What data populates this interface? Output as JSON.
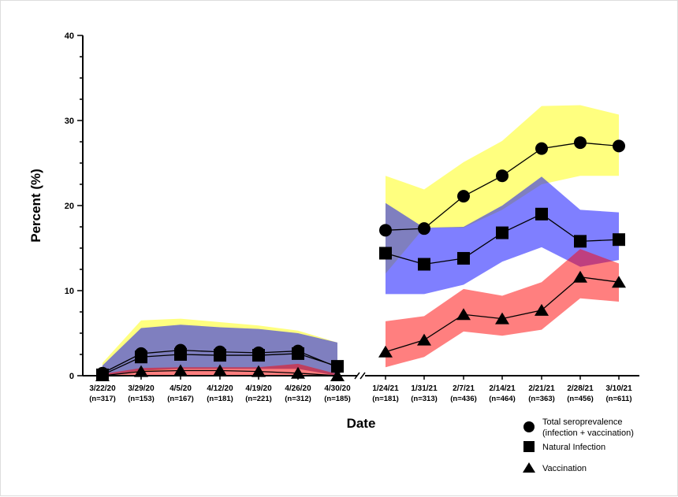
{
  "chart_data": {
    "type": "line",
    "xlabel": "Date",
    "ylabel": "Percent (%)",
    "ylim": [
      0,
      40
    ],
    "yticks": [
      0,
      10,
      20,
      30,
      40
    ],
    "axis_break": true,
    "segments": [
      {
        "categories": [
          "3/22/20",
          "3/29/20",
          "4/5/20",
          "4/12/20",
          "4/19/20",
          "4/26/20",
          "4/30/20"
        ],
        "n": [
          "(n=317)",
          "(n=153)",
          "(n=167)",
          "(n=181)",
          "(n=221)",
          "(n=312)",
          "(n=185)"
        ],
        "series": [
          {
            "name": "Total seroprevalence (infection + vaccination)",
            "marker": "circle",
            "band_color": "#ffff00",
            "values": [
              0.3,
              2.6,
              3.0,
              2.8,
              2.7,
              2.9,
              1.0
            ],
            "upper": [
              1.5,
              6.5,
              6.7,
              6.3,
              5.9,
              5.3,
              3.9
            ],
            "lower": [
              0,
              0.5,
              0.8,
              0.8,
              0.8,
              0.8,
              0
            ]
          },
          {
            "name": "Natural Infection",
            "marker": "square",
            "band_color": "#0000ff",
            "values": [
              0.1,
              2.2,
              2.5,
              2.4,
              2.4,
              2.6,
              1.1
            ],
            "upper": [
              1.2,
              5.6,
              6.0,
              5.7,
              5.5,
              5.0,
              3.9
            ],
            "lower": [
              0,
              0.6,
              0.8,
              0.8,
              0.8,
              0.8,
              0
            ]
          },
          {
            "name": "Vaccination",
            "marker": "triangle",
            "band_color": "#ff0000",
            "values": [
              0,
              0.5,
              0.6,
              0.6,
              0.5,
              0.3,
              0
            ],
            "upper": [
              0.2,
              0.9,
              1.0,
              1.0,
              1.0,
              1.4,
              0.2
            ],
            "lower": [
              0,
              0,
              0,
              0,
              0,
              0,
              0
            ]
          }
        ]
      },
      {
        "categories": [
          "1/24/21",
          "1/31/21",
          "2/7/21",
          "2/14/21",
          "2/21/21",
          "2/28/21",
          "3/10/21"
        ],
        "n": [
          "(n=181)",
          "(n=313)",
          "(n=436)",
          "(n=464)",
          "(n=363)",
          "(n=456)",
          "(n=611)"
        ],
        "series": [
          {
            "name": "Total seroprevalence (infection + vaccination)",
            "marker": "circle",
            "band_color": "#ffff00",
            "values": [
              17.1,
              17.3,
              21.1,
              23.5,
              26.7,
              27.4,
              27.0
            ],
            "upper": [
              23.5,
              21.9,
              25.1,
              27.6,
              31.7,
              31.8,
              30.7
            ],
            "lower": [
              12.0,
              17.4,
              17.4,
              19.5,
              22.5,
              23.5,
              23.5
            ]
          },
          {
            "name": "Natural Infection",
            "marker": "square",
            "band_color": "#0000ff",
            "values": [
              14.4,
              13.1,
              13.8,
              16.8,
              19.0,
              15.8,
              16.0
            ],
            "upper": [
              20.3,
              17.4,
              17.5,
              20.0,
              23.4,
              19.5,
              19.2
            ],
            "lower": [
              9.6,
              9.6,
              10.7,
              13.4,
              15.1,
              12.8,
              13.6
            ]
          },
          {
            "name": "Vaccination",
            "marker": "triangle",
            "band_color": "#ff0000",
            "values": [
              2.8,
              4.2,
              7.2,
              6.7,
              7.7,
              11.6,
              11.0
            ],
            "upper": [
              6.4,
              7.0,
              10.2,
              9.4,
              11.0,
              14.9,
              13.2
            ],
            "lower": [
              1.0,
              2.2,
              5.2,
              4.7,
              5.4,
              9.1,
              8.7
            ]
          }
        ]
      }
    ],
    "legend": {
      "placement": "bottom-right",
      "entries": [
        {
          "marker": "circle",
          "label_line1": "Total seroprevalence",
          "label_line2": "(infection + vaccination)"
        },
        {
          "marker": "square",
          "label_line1": "Natural Infection"
        },
        {
          "marker": "triangle",
          "label_line1": "Vaccination"
        }
      ]
    }
  }
}
